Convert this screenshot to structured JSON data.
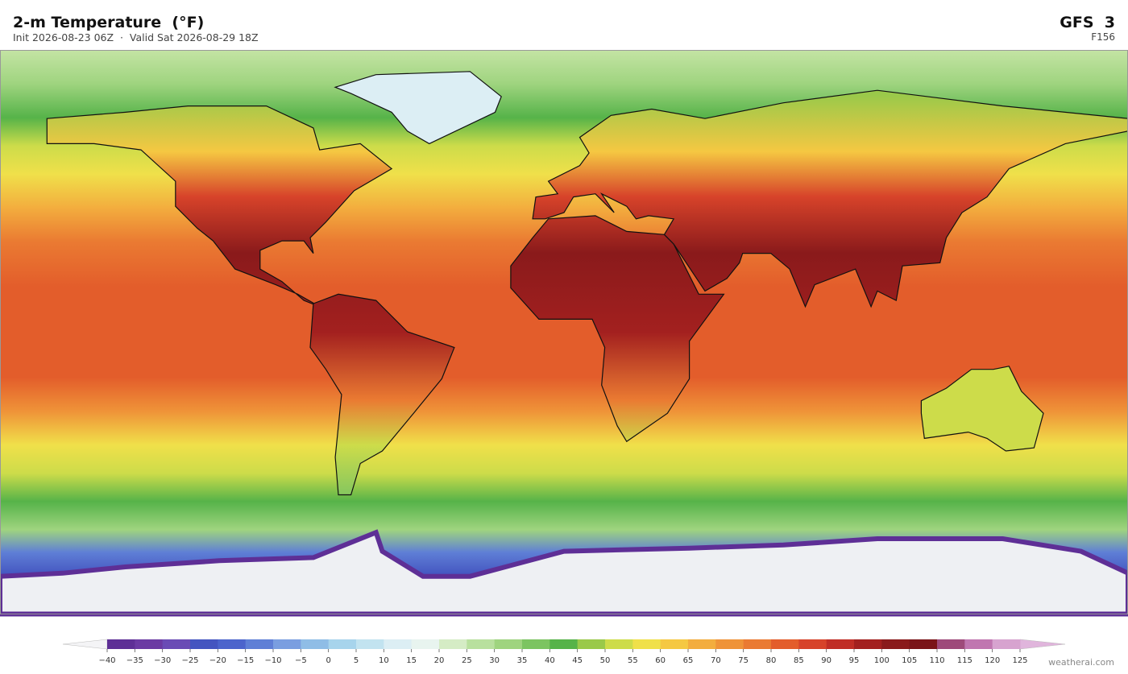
{
  "header": {
    "title": "2-m Temperature  (°F)",
    "subtitle": "Init 2026-08-23 06Z  ·  Valid Sat 2026-08-29 18Z",
    "model": "GFS  3",
    "forecast_hour": "F156"
  },
  "colorbar": {
    "ticks": [
      {
        "value": -40,
        "label": "−40"
      },
      {
        "value": -35,
        "label": "−35"
      },
      {
        "value": -30,
        "label": "−30"
      },
      {
        "value": -25,
        "label": "−25"
      },
      {
        "value": -20,
        "label": "−20"
      },
      {
        "value": -15,
        "label": "−15"
      },
      {
        "value": -10,
        "label": "−10"
      },
      {
        "value": -5,
        "label": "−5"
      },
      0,
      5,
      10,
      15,
      20,
      25,
      30,
      35,
      40,
      45,
      50,
      55,
      60,
      65,
      70,
      75,
      80,
      85,
      90,
      95,
      100,
      105,
      110,
      115,
      120,
      125
    ],
    "colors": [
      "#5e2f96",
      "#6b3aa3",
      "#6a4bb5",
      "#4455c0",
      "#4c64cc",
      "#5f7fd6",
      "#7a9ee0",
      "#8fbde6",
      "#a7d4ec",
      "#c2e3f0",
      "#dceef4",
      "#e8f4ef",
      "#d5ecc5",
      "#b8e09e",
      "#9fd47f",
      "#7cc461",
      "#56b349",
      "#9ac94a",
      "#cddc4a",
      "#f0e04a",
      "#f5c842",
      "#f3ad3e",
      "#ef9338",
      "#ea7a32",
      "#e35d2b",
      "#d7432a",
      "#c02d25",
      "#a3201f",
      "#8a1a1b",
      "#7a1418",
      "#9e4a7a",
      "#c076b0",
      "#d7a3cf"
    ],
    "under_color": "#f4f4f6",
    "over_color": "#e0b5dc"
  },
  "footer": {
    "credit": "weatherai.com"
  }
}
